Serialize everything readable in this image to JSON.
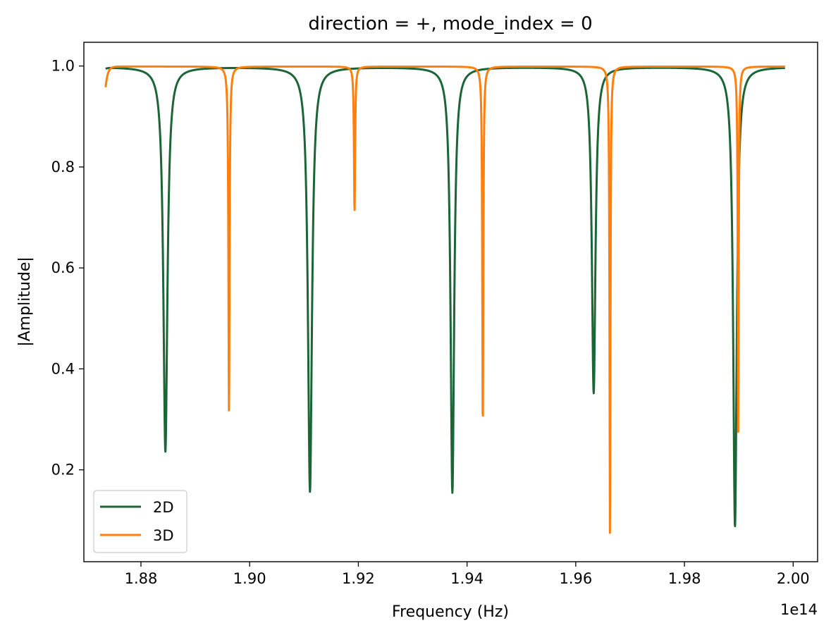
{
  "chart_data": {
    "type": "line",
    "title": "direction = +, mode_index = 0",
    "xlabel": "Frequency (Hz)",
    "ylabel": "|Amplitude|",
    "x_offset_label": "1e14",
    "xlim": [
      1.8695,
      2.0045
    ],
    "ylim": [
      0.018,
      1.047
    ],
    "x_ticks": [
      1.88,
      1.9,
      1.92,
      1.94,
      1.96,
      1.98,
      2.0
    ],
    "x_tick_labels": [
      "1.88",
      "1.90",
      "1.92",
      "1.94",
      "1.96",
      "1.98",
      "2.00"
    ],
    "y_ticks": [
      0.2,
      0.4,
      0.6,
      0.8,
      1.0
    ],
    "y_tick_labels": [
      "0.2",
      "0.4",
      "0.6",
      "0.8",
      "1.0"
    ],
    "grid": false,
    "legend_position": "lower-left",
    "x_range": [
      1.8735,
      1.9985
    ],
    "series": [
      {
        "name": "2D",
        "color": "#1b6536",
        "baseline": 0.998,
        "dips": [
          {
            "x": 1.8845,
            "min": 0.236,
            "width": 0.00045
          },
          {
            "x": 1.9111,
            "min": 0.157,
            "width": 0.00045
          },
          {
            "x": 1.9373,
            "min": 0.155,
            "width": 0.0004
          },
          {
            "x": 1.9633,
            "min": 0.352,
            "width": 0.0004
          },
          {
            "x": 1.9893,
            "min": 0.087,
            "width": 0.0004
          }
        ],
        "start_value": 0.996
      },
      {
        "name": "3D",
        "color": "#ff7f0e",
        "baseline": 0.999,
        "dips": [
          {
            "x": 1.8962,
            "min": 0.315,
            "width": 0.00012
          },
          {
            "x": 1.9193,
            "min": 0.709,
            "width": 0.00012
          },
          {
            "x": 1.9429,
            "min": 0.277,
            "width": 0.00011
          },
          {
            "x": 1.9663,
            "min": 0.063,
            "width": 0.0001
          },
          {
            "x": 1.9899,
            "min": 0.273,
            "width": 0.0001
          }
        ],
        "start_value": 0.958
      }
    ]
  }
}
